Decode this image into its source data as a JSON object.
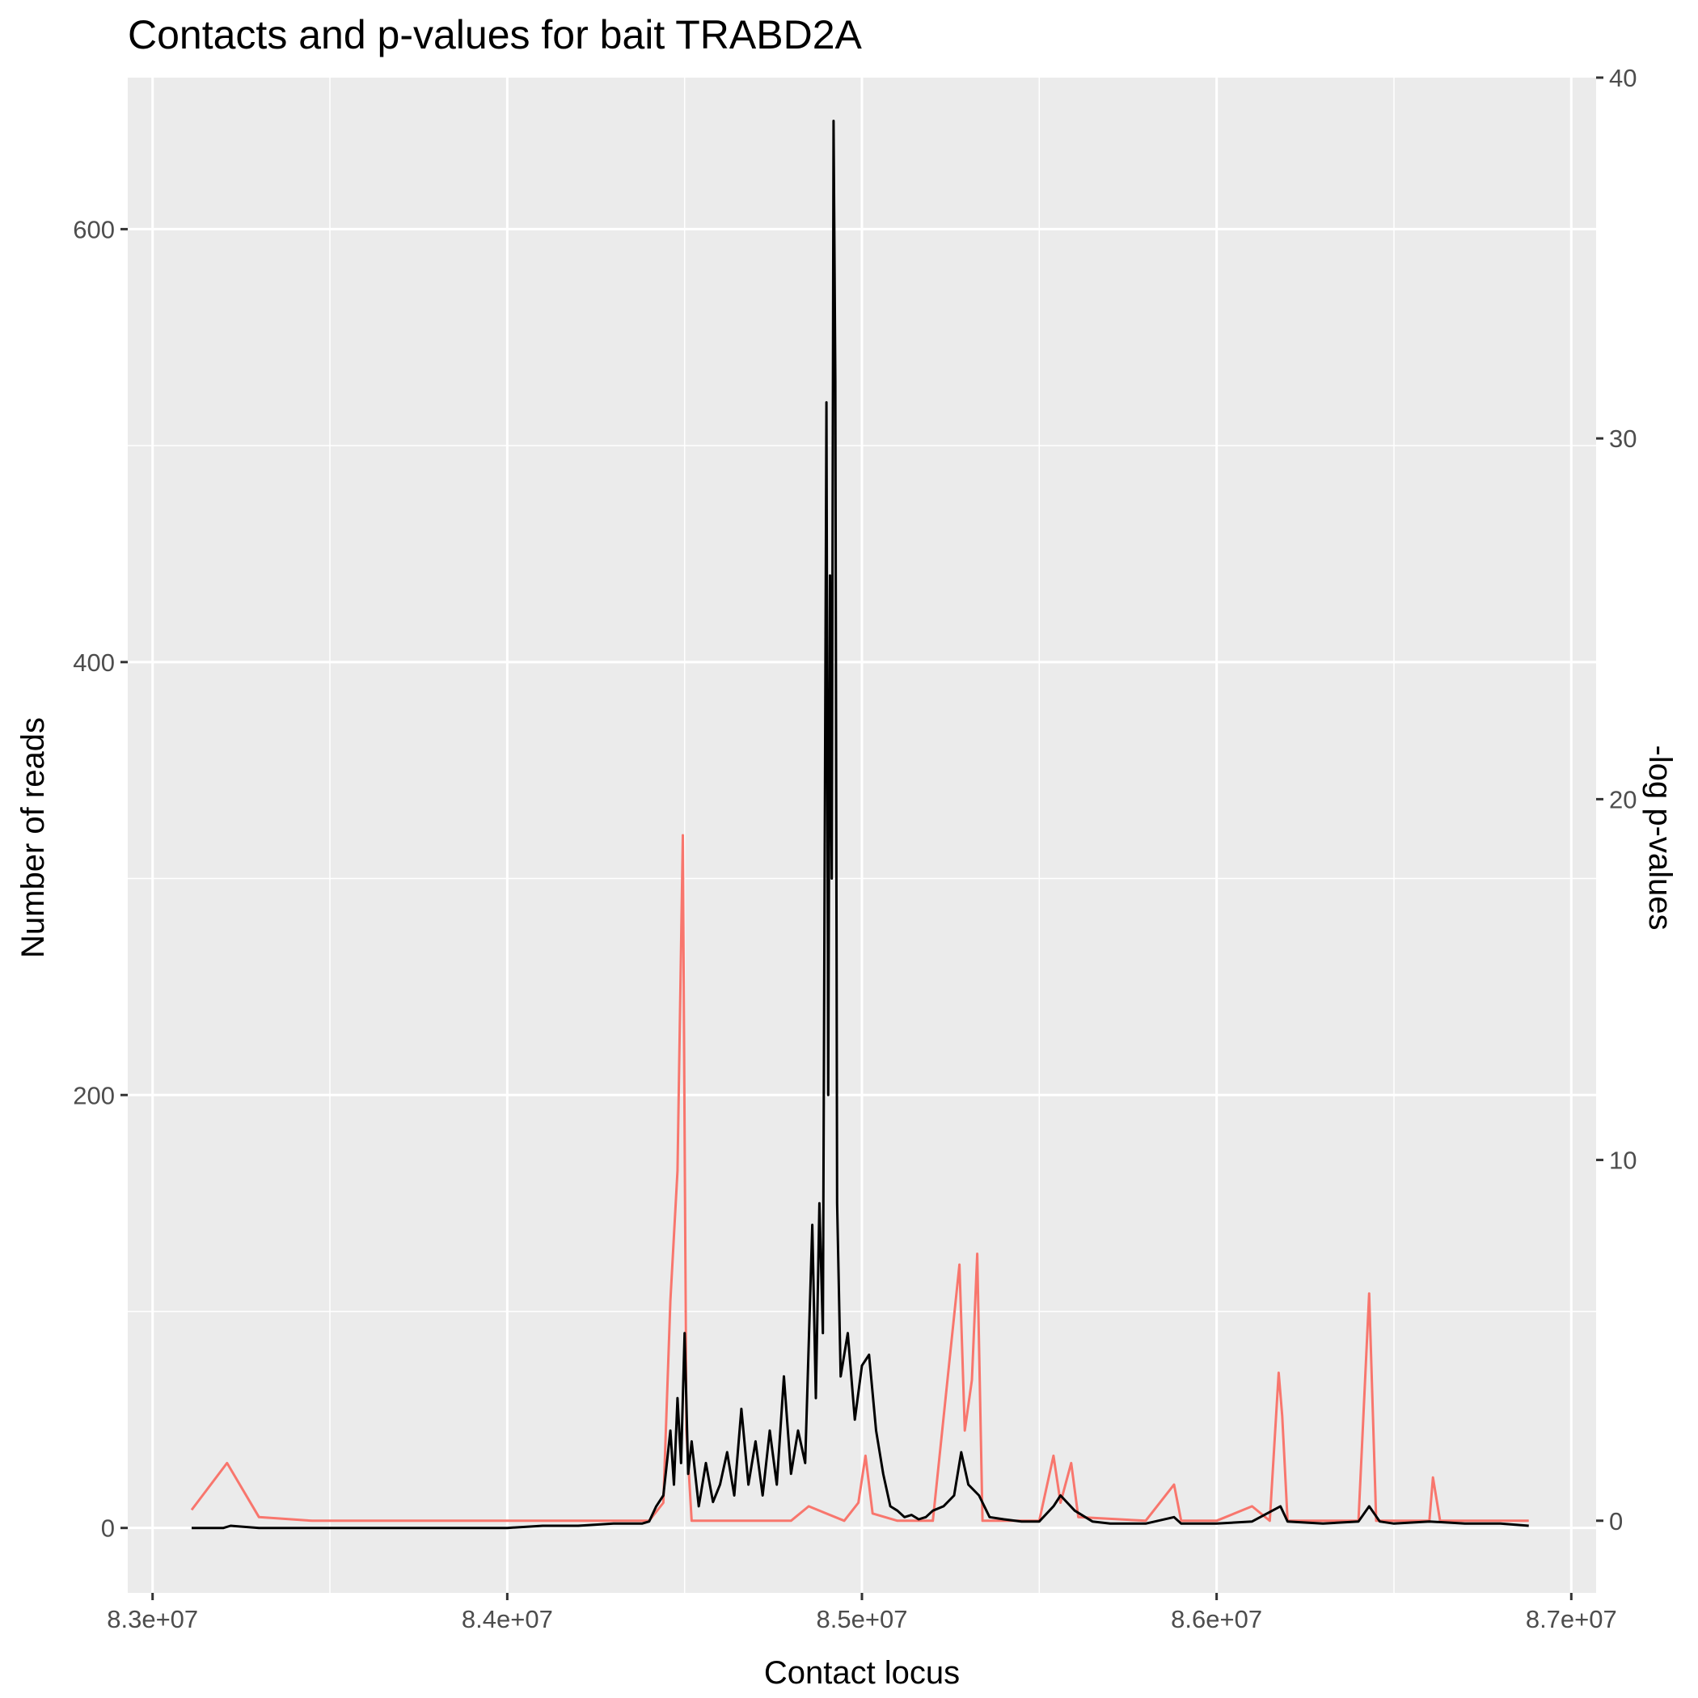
{
  "chart_data": {
    "type": "line",
    "title": "Contacts and p-values for bait TRABD2A",
    "xlabel": "Contact locus",
    "ylabel": "Number of reads",
    "y2label": "-log p-values",
    "xlim": [
      82930000,
      87070000
    ],
    "ylim": [
      -30,
      670
    ],
    "y2lim": [
      -2,
      40
    ],
    "x_ticks": [
      {
        "value": 83000000,
        "label": "8.3e+07"
      },
      {
        "value": 84000000,
        "label": "8.4e+07"
      },
      {
        "value": 85000000,
        "label": "8.5e+07"
      },
      {
        "value": 86000000,
        "label": "8.6e+07"
      },
      {
        "value": 87000000,
        "label": "8.7e+07"
      }
    ],
    "y_ticks": [
      {
        "value": 0,
        "label": "0"
      },
      {
        "value": 200,
        "label": "200"
      },
      {
        "value": 400,
        "label": "400"
      },
      {
        "value": 600,
        "label": "600"
      }
    ],
    "y2_ticks": [
      {
        "value": 0,
        "label": "0"
      },
      {
        "value": 10,
        "label": "10"
      },
      {
        "value": 20,
        "label": "20"
      },
      {
        "value": 30,
        "label": "30"
      },
      {
        "value": 40,
        "label": "40"
      }
    ],
    "grid": true,
    "series": [
      {
        "color": "#000000",
        "axis": "left",
        "points": [
          [
            83110000,
            0
          ],
          [
            83200000,
            0
          ],
          [
            83220000,
            1
          ],
          [
            83300000,
            0
          ],
          [
            83400000,
            0
          ],
          [
            83500000,
            0
          ],
          [
            83600000,
            0
          ],
          [
            83700000,
            0
          ],
          [
            83800000,
            0
          ],
          [
            83900000,
            0
          ],
          [
            84000000,
            0
          ],
          [
            84100000,
            1
          ],
          [
            84200000,
            1
          ],
          [
            84300000,
            2
          ],
          [
            84380000,
            2
          ],
          [
            84400000,
            3
          ],
          [
            84420000,
            10
          ],
          [
            84440000,
            15
          ],
          [
            84460000,
            45
          ],
          [
            84470000,
            20
          ],
          [
            84480000,
            60
          ],
          [
            84490000,
            30
          ],
          [
            84500000,
            90
          ],
          [
            84510000,
            25
          ],
          [
            84520000,
            40
          ],
          [
            84540000,
            10
          ],
          [
            84560000,
            30
          ],
          [
            84580000,
            12
          ],
          [
            84600000,
            20
          ],
          [
            84620000,
            35
          ],
          [
            84640000,
            15
          ],
          [
            84660000,
            55
          ],
          [
            84680000,
            20
          ],
          [
            84700000,
            40
          ],
          [
            84720000,
            15
          ],
          [
            84740000,
            45
          ],
          [
            84760000,
            20
          ],
          [
            84780000,
            70
          ],
          [
            84800000,
            25
          ],
          [
            84820000,
            45
          ],
          [
            84840000,
            30
          ],
          [
            84860000,
            140
          ],
          [
            84870000,
            60
          ],
          [
            84880000,
            150
          ],
          [
            84890000,
            90
          ],
          [
            84900000,
            520
          ],
          [
            84905000,
            200
          ],
          [
            84910000,
            440
          ],
          [
            84915000,
            300
          ],
          [
            84920000,
            650
          ],
          [
            84925000,
            530
          ],
          [
            84930000,
            150
          ],
          [
            84940000,
            70
          ],
          [
            84960000,
            90
          ],
          [
            84980000,
            50
          ],
          [
            85000000,
            75
          ],
          [
            85020000,
            80
          ],
          [
            85040000,
            45
          ],
          [
            85060000,
            25
          ],
          [
            85080000,
            10
          ],
          [
            85100000,
            8
          ],
          [
            85120000,
            5
          ],
          [
            85140000,
            6
          ],
          [
            85160000,
            4
          ],
          [
            85180000,
            5
          ],
          [
            85200000,
            8
          ],
          [
            85230000,
            10
          ],
          [
            85260000,
            15
          ],
          [
            85280000,
            35
          ],
          [
            85300000,
            20
          ],
          [
            85330000,
            15
          ],
          [
            85360000,
            5
          ],
          [
            85400000,
            4
          ],
          [
            85450000,
            3
          ],
          [
            85500000,
            3
          ],
          [
            85540000,
            10
          ],
          [
            85560000,
            15
          ],
          [
            85600000,
            8
          ],
          [
            85650000,
            3
          ],
          [
            85700000,
            2
          ],
          [
            85800000,
            2
          ],
          [
            85880000,
            5
          ],
          [
            85900000,
            2
          ],
          [
            86000000,
            2
          ],
          [
            86100000,
            3
          ],
          [
            86180000,
            10
          ],
          [
            86200000,
            3
          ],
          [
            86300000,
            2
          ],
          [
            86400000,
            3
          ],
          [
            86430000,
            10
          ],
          [
            86460000,
            3
          ],
          [
            86500000,
            2
          ],
          [
            86600000,
            3
          ],
          [
            86700000,
            2
          ],
          [
            86800000,
            2
          ],
          [
            86880000,
            1
          ]
        ]
      },
      {
        "color": "#f8766d",
        "axis": "right",
        "points": [
          [
            83110000,
            0.3
          ],
          [
            83210000,
            1.6
          ],
          [
            83300000,
            0.1
          ],
          [
            83450000,
            0
          ],
          [
            83800000,
            0
          ],
          [
            84200000,
            0
          ],
          [
            84400000,
            0
          ],
          [
            84440000,
            0.5
          ],
          [
            84460000,
            6.1
          ],
          [
            84480000,
            9.7
          ],
          [
            84495000,
            19
          ],
          [
            84505000,
            2.5
          ],
          [
            84520000,
            0
          ],
          [
            84600000,
            0
          ],
          [
            84800000,
            0
          ],
          [
            84850000,
            0.4
          ],
          [
            84950000,
            0
          ],
          [
            84990000,
            0.5
          ],
          [
            85010000,
            1.8
          ],
          [
            85030000,
            0.2
          ],
          [
            85100000,
            0
          ],
          [
            85200000,
            0
          ],
          [
            85275000,
            7.1
          ],
          [
            85290000,
            2.5
          ],
          [
            85310000,
            3.9
          ],
          [
            85325000,
            7.4
          ],
          [
            85340000,
            0
          ],
          [
            85500000,
            0
          ],
          [
            85540000,
            1.8
          ],
          [
            85560000,
            0.5
          ],
          [
            85590000,
            1.6
          ],
          [
            85610000,
            0.1
          ],
          [
            85800000,
            0
          ],
          [
            85880000,
            1
          ],
          [
            85900000,
            0
          ],
          [
            86000000,
            0
          ],
          [
            86100000,
            0.4
          ],
          [
            86150000,
            0
          ],
          [
            86175000,
            4.1
          ],
          [
            86185000,
            2.9
          ],
          [
            86200000,
            0
          ],
          [
            86400000,
            0
          ],
          [
            86430000,
            6.3
          ],
          [
            86450000,
            0
          ],
          [
            86600000,
            0
          ],
          [
            86610000,
            1.2
          ],
          [
            86630000,
            0
          ],
          [
            86880000,
            0
          ]
        ]
      }
    ]
  }
}
